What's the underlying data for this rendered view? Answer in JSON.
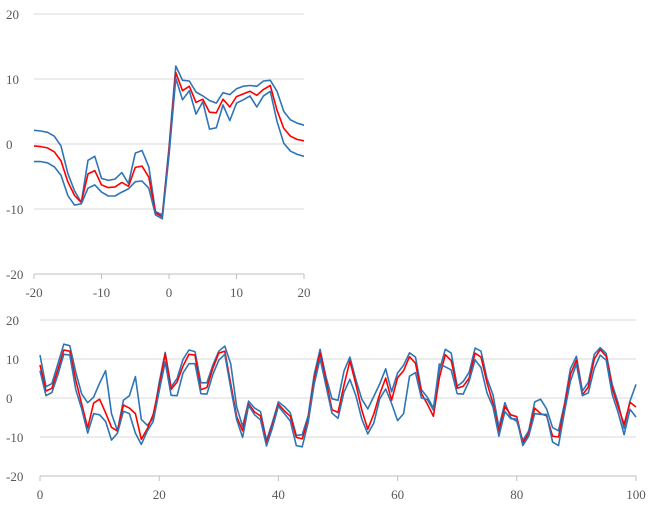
{
  "chart_data": [
    {
      "type": "line",
      "title": "",
      "xlabel": "",
      "ylabel": "",
      "xlim": [
        -20,
        20
      ],
      "ylim": [
        -20,
        20
      ],
      "xticks": [
        -20,
        -10,
        0,
        10,
        20
      ],
      "yticks": [
        -20,
        -10,
        0,
        10,
        20
      ],
      "x": [
        -20,
        -19,
        -18,
        -17,
        -16,
        -15,
        -14,
        -13,
        -12,
        -11,
        -10,
        -9,
        -8,
        -7,
        -6,
        -5,
        -4,
        -3,
        -2,
        -1,
        0,
        1,
        2,
        3,
        4,
        5,
        6,
        7,
        8,
        9,
        10,
        11,
        12,
        13,
        14,
        15,
        16,
        17,
        18,
        19,
        20
      ],
      "grid": "horizontal",
      "series": [
        {
          "color": "#2E75B6",
          "values": [
            2.1,
            2.0,
            1.8,
            1.2,
            -0.3,
            -4.5,
            -7.2,
            -9.0,
            -2.5,
            -1.9,
            -5.3,
            -5.6,
            -5.4,
            -4.4,
            -6.1,
            -1.4,
            -1.0,
            -3.5,
            -10.4,
            -10.9,
            -0.5,
            12.0,
            9.8,
            9.7,
            8.0,
            7.4,
            6.7,
            6.3,
            7.9,
            7.6,
            8.5,
            8.9,
            9.0,
            8.9,
            9.7,
            9.8,
            8.1,
            5.0,
            3.7,
            3.2,
            2.9
          ]
        },
        {
          "color": "#FF0000",
          "values": [
            -0.3,
            -0.4,
            -0.6,
            -1.2,
            -2.6,
            -5.8,
            -7.9,
            -9.0,
            -4.6,
            -4.1,
            -6.3,
            -6.7,
            -6.6,
            -5.9,
            -6.5,
            -3.6,
            -3.4,
            -5.1,
            -10.6,
            -11.2,
            -1.1,
            11.0,
            8.2,
            8.9,
            6.4,
            6.9,
            4.9,
            4.8,
            6.9,
            5.7,
            7.3,
            7.7,
            8.1,
            7.5,
            8.4,
            9.0,
            5.2,
            2.4,
            1.2,
            0.7,
            0.5
          ]
        },
        {
          "color": "#2E75B6",
          "values": [
            -2.7,
            -2.7,
            -2.9,
            -3.5,
            -4.8,
            -7.9,
            -9.4,
            -9.2,
            -6.8,
            -6.3,
            -7.4,
            -8.0,
            -8.0,
            -7.4,
            -6.9,
            -5.8,
            -5.7,
            -6.8,
            -10.9,
            -11.5,
            -1.8,
            10.1,
            6.8,
            8.2,
            4.6,
            6.5,
            2.3,
            2.5,
            6.0,
            3.6,
            6.3,
            6.8,
            7.4,
            5.7,
            7.4,
            8.1,
            3.5,
            0.1,
            -1.1,
            -1.6,
            -1.9
          ]
        }
      ]
    },
    {
      "type": "line",
      "title": "",
      "xlabel": "",
      "ylabel": "",
      "xlim": [
        0,
        100
      ],
      "ylim": [
        -20,
        20
      ],
      "xticks": [
        0,
        20,
        40,
        60,
        80,
        100
      ],
      "yticks": [
        -20,
        -10,
        0,
        10,
        20
      ],
      "x": [
        0,
        1,
        2,
        3,
        4,
        5,
        6,
        7,
        8,
        9,
        10,
        11,
        12,
        13,
        14,
        15,
        16,
        17,
        18,
        19,
        20,
        21,
        22,
        23,
        24,
        25,
        26,
        27,
        28,
        29,
        30,
        31,
        32,
        33,
        34,
        35,
        36,
        37,
        38,
        39,
        40,
        41,
        42,
        43,
        44,
        45,
        46,
        47,
        48,
        49,
        50,
        51,
        52,
        53,
        54,
        55,
        56,
        57,
        58,
        59,
        60,
        61,
        62,
        63,
        64,
        65,
        66,
        67,
        68,
        69,
        70,
        71,
        72,
        73,
        74,
        75,
        76,
        77,
        78,
        79,
        80,
        81,
        82,
        83,
        84,
        85,
        86,
        87,
        88,
        89,
        90,
        91,
        92,
        93,
        94,
        95,
        96,
        97,
        98,
        99,
        100
      ],
      "grid": "horizontal",
      "series": [
        {
          "color": "#2E75B6",
          "values": [
            11.0,
            2.9,
            3.7,
            8.8,
            13.8,
            13.4,
            6.6,
            1.0,
            -1.2,
            0.2,
            3.8,
            7.0,
            -4.0,
            -8.4,
            -0.6,
            0.6,
            5.5,
            -5.5,
            -7.0,
            -5.2,
            4.0,
            11.7,
            2.8,
            5.0,
            9.9,
            12.3,
            11.9,
            3.9,
            3.9,
            8.4,
            12.0,
            13.3,
            8.8,
            -2.3,
            -7.3,
            -0.8,
            -2.6,
            -3.5,
            -10.9,
            -6.2,
            -1.0,
            -2.2,
            -3.8,
            -9.6,
            -9.4,
            -4.5,
            6.0,
            12.5,
            5.3,
            -0.2,
            -0.6,
            6.9,
            10.5,
            4.7,
            -0.3,
            -2.8,
            0.4,
            3.6,
            7.5,
            1.6,
            6.4,
            8.4,
            11.6,
            10.5,
            2.1,
            0.2,
            -2.6,
            7.0,
            12.5,
            11.5,
            3.0,
            4.2,
            6.6,
            12.8,
            12.0,
            5.0,
            0.8,
            -7.5,
            -1.2,
            -5.0,
            -6.0,
            -10.9,
            -8.4,
            -1.0,
            -0.3,
            -2.8,
            -7.6,
            -8.4,
            -1.4,
            7.5,
            10.7,
            1.8,
            4.0,
            11.2,
            12.9,
            11.4,
            3.5,
            -1.2,
            -7.8,
            -0.8,
            3.5
          ]
        },
        {
          "color": "#FF0000",
          "values": [
            8.5,
            1.8,
            2.5,
            7.3,
            12.3,
            12.0,
            4.5,
            -1.5,
            -7.7,
            -1.3,
            -0.3,
            -3.8,
            -7.5,
            -8.5,
            -1.8,
            -2.6,
            -4.0,
            -10.6,
            -7.9,
            -4.2,
            3.0,
            11.3,
            2.2,
            4.1,
            8.2,
            11.2,
            11.0,
            2.1,
            2.7,
            7.6,
            11.5,
            12.0,
            3.7,
            -4.8,
            -8.4,
            -1.5,
            -3.6,
            -4.6,
            -11.5,
            -7.0,
            -1.6,
            -3.3,
            -4.7,
            -10.1,
            -10.5,
            -5.6,
            4.7,
            11.5,
            4.3,
            -3.0,
            -3.7,
            3.3,
            9.5,
            3.5,
            -3.1,
            -8.0,
            -4.1,
            1.0,
            5.1,
            -0.6,
            5.2,
            7.0,
            10.6,
            8.9,
            1.2,
            -1.6,
            -4.7,
            5.1,
            11.1,
            9.6,
            2.5,
            3.0,
            5.1,
            11.5,
            10.5,
            3.9,
            -1.4,
            -8.7,
            -2.2,
            -4.3,
            -4.8,
            -11.5,
            -9.1,
            -2.6,
            -4.0,
            -4.6,
            -9.8,
            -10.0,
            -2.4,
            6.0,
            9.7,
            0.8,
            2.8,
            10.0,
            12.4,
            10.7,
            2.5,
            -2.2,
            -6.8,
            -1.1,
            -2.3
          ]
        },
        {
          "color": "#2E75B6",
          "values": [
            7.0,
            0.6,
            1.4,
            6.0,
            11.2,
            11.0,
            2.1,
            -2.8,
            -9.0,
            -4.0,
            -4.3,
            -6.0,
            -10.8,
            -9.0,
            -3.4,
            -4.0,
            -9.0,
            -11.9,
            -8.5,
            -6.0,
            1.8,
            9.2,
            0.7,
            0.6,
            6.4,
            8.8,
            8.8,
            1.1,
            1.0,
            6.0,
            9.7,
            11.2,
            2.6,
            -5.6,
            -10.1,
            -1.9,
            -4.3,
            -5.6,
            -12.3,
            -7.7,
            -2.1,
            -4.0,
            -5.9,
            -12.2,
            -12.5,
            -6.2,
            3.6,
            10.1,
            3.0,
            -3.9,
            -5.2,
            1.5,
            4.8,
            0.6,
            -5.4,
            -9.2,
            -6.4,
            -0.2,
            2.3,
            -1.4,
            -5.8,
            -4.0,
            5.6,
            6.5,
            0.0,
            -0.4,
            -3.1,
            8.7,
            8.0,
            7.2,
            1.1,
            1.0,
            4.3,
            9.8,
            7.8,
            1.3,
            -2.3,
            -9.8,
            -3.5,
            -5.3,
            -5.4,
            -12.2,
            -9.8,
            -4.0,
            -4.2,
            -4.2,
            -11.3,
            -12.2,
            -3.5,
            4.3,
            8.7,
            0.6,
            1.3,
            7.6,
            11.0,
            9.7,
            0.9,
            -3.7,
            -9.4,
            -2.9,
            -4.9
          ]
        }
      ]
    }
  ]
}
